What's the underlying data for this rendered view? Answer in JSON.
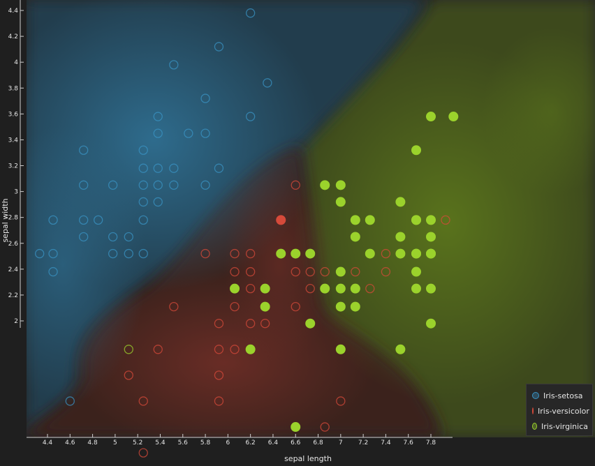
{
  "chart_data": {
    "type": "scatter",
    "title": "",
    "xlabel": "sepal length",
    "ylabel": "sepal width",
    "xlim": [
      4.2,
      8.05
    ],
    "ylim": [
      0.85,
      4.45
    ],
    "x_ticks": [
      4.4,
      4.6,
      4.8,
      5,
      5.2,
      5.4,
      5.6,
      5.8,
      6,
      6.2,
      6.4,
      6.6,
      6.8,
      7,
      7.2,
      7.4,
      7.6,
      7.8
    ],
    "y_ticks": [
      2,
      2.2,
      2.4,
      2.6,
      2.8,
      3,
      3.2,
      3.4,
      3.6,
      3.8,
      4,
      4.2,
      4.4
    ],
    "background": "class probability regions (colored by predicted class)",
    "legend_position": "bottom-right",
    "colors": {
      "Iris-setosa": "#3a93c3",
      "Iris-versicolor": "#d64a3a",
      "Iris-virginica": "#9bd22c"
    },
    "series": [
      {
        "name": "Iris-setosa",
        "marker": "hollow",
        "points": [
          [
            6.2,
            4.38
          ],
          [
            5.92,
            4.12
          ],
          [
            5.52,
            3.98
          ],
          [
            6.35,
            3.84
          ],
          [
            5.8,
            3.72
          ],
          [
            5.38,
            3.58
          ],
          [
            6.2,
            3.58
          ],
          [
            5.38,
            3.45
          ],
          [
            5.65,
            3.45
          ],
          [
            5.8,
            3.45
          ],
          [
            4.72,
            3.32
          ],
          [
            5.25,
            3.32
          ],
          [
            5.25,
            3.18
          ],
          [
            5.38,
            3.18
          ],
          [
            5.52,
            3.18
          ],
          [
            5.92,
            3.18
          ],
          [
            4.72,
            3.05
          ],
          [
            4.98,
            3.05
          ],
          [
            5.25,
            3.05
          ],
          [
            5.38,
            3.05
          ],
          [
            5.52,
            3.05
          ],
          [
            5.8,
            3.05
          ],
          [
            5.25,
            2.92
          ],
          [
            5.38,
            2.92
          ],
          [
            4.45,
            2.78
          ],
          [
            4.72,
            2.78
          ],
          [
            4.85,
            2.78
          ],
          [
            5.25,
            2.78
          ],
          [
            4.72,
            2.65
          ],
          [
            4.98,
            2.65
          ],
          [
            5.12,
            2.65
          ],
          [
            4.33,
            2.52
          ],
          [
            4.45,
            2.52
          ],
          [
            4.98,
            2.52
          ],
          [
            5.12,
            2.52
          ],
          [
            5.25,
            2.52
          ],
          [
            4.45,
            2.38
          ],
          [
            4.6,
            1.38
          ]
        ]
      },
      {
        "name": "Iris-versicolor",
        "marker": "hollow",
        "points": [
          [
            6.6,
            3.05
          ],
          [
            6.47,
            2.78
          ],
          [
            7.93,
            2.78
          ],
          [
            5.8,
            2.52
          ],
          [
            6.06,
            2.52
          ],
          [
            6.2,
            2.52
          ],
          [
            7.4,
            2.52
          ],
          [
            6.06,
            2.38
          ],
          [
            6.2,
            2.38
          ],
          [
            6.6,
            2.38
          ],
          [
            6.73,
            2.38
          ],
          [
            6.86,
            2.38
          ],
          [
            7.13,
            2.38
          ],
          [
            7.4,
            2.38
          ],
          [
            6.2,
            2.25
          ],
          [
            6.73,
            2.25
          ],
          [
            7.26,
            2.25
          ],
          [
            7.67,
            2.25
          ],
          [
            5.52,
            2.11
          ],
          [
            6.06,
            2.11
          ],
          [
            6.6,
            2.11
          ],
          [
            5.92,
            1.98
          ],
          [
            6.2,
            1.98
          ],
          [
            6.33,
            1.98
          ],
          [
            5.38,
            1.78
          ],
          [
            5.92,
            1.78
          ],
          [
            6.06,
            1.78
          ],
          [
            5.12,
            1.58
          ],
          [
            5.92,
            1.58
          ],
          [
            5.25,
            1.38
          ],
          [
            5.92,
            1.38
          ],
          [
            7.0,
            1.38
          ],
          [
            6.86,
            1.18
          ],
          [
            5.25,
            0.98
          ]
        ]
      },
      {
        "name": "Iris-virginica",
        "marker": "filled",
        "points": [
          [
            7.8,
            3.58
          ],
          [
            8.0,
            3.58
          ],
          [
            7.67,
            3.32
          ],
          [
            6.86,
            3.05
          ],
          [
            7.0,
            3.05
          ],
          [
            7.0,
            2.92
          ],
          [
            7.53,
            2.92
          ],
          [
            7.13,
            2.78
          ],
          [
            7.26,
            2.78
          ],
          [
            7.67,
            2.78
          ],
          [
            7.8,
            2.78
          ],
          [
            7.67,
            2.78
          ],
          [
            7.13,
            2.65
          ],
          [
            7.53,
            2.65
          ],
          [
            7.8,
            2.65
          ],
          [
            6.47,
            2.52
          ],
          [
            6.6,
            2.52
          ],
          [
            6.73,
            2.52
          ],
          [
            7.26,
            2.52
          ],
          [
            7.53,
            2.52
          ],
          [
            7.67,
            2.52
          ],
          [
            7.67,
            2.52
          ],
          [
            7.8,
            2.52
          ],
          [
            7.8,
            2.52
          ],
          [
            7.0,
            2.38
          ],
          [
            7.67,
            2.38
          ],
          [
            6.06,
            2.25
          ],
          [
            6.33,
            2.25
          ],
          [
            6.86,
            2.25
          ],
          [
            7.0,
            2.25
          ],
          [
            7.13,
            2.25
          ],
          [
            7.67,
            2.25
          ],
          [
            7.8,
            2.25
          ],
          [
            6.33,
            2.11
          ],
          [
            7.0,
            2.11
          ],
          [
            7.13,
            2.11
          ],
          [
            6.73,
            1.98
          ],
          [
            7.8,
            1.98
          ],
          [
            6.2,
            1.78
          ],
          [
            7.0,
            1.78
          ],
          [
            7.53,
            1.78
          ],
          [
            6.6,
            1.18
          ]
        ]
      }
    ],
    "misclassified_markers": [
      {
        "class": "Iris-virginica",
        "marker": "hollow",
        "points": [
          [
            5.12,
            1.78
          ],
          [
            7.67,
            2.52
          ]
        ]
      },
      {
        "class": "Iris-versicolor",
        "marker": "filled",
        "points": [
          [
            6.47,
            2.78
          ]
        ]
      }
    ]
  },
  "legend": {
    "items": [
      {
        "label": "Iris-setosa",
        "color": "#3a93c3"
      },
      {
        "label": "Iris-versicolor",
        "color": "#d64a3a"
      },
      {
        "label": "Iris-virginica",
        "color": "#9bd22c"
      }
    ]
  }
}
